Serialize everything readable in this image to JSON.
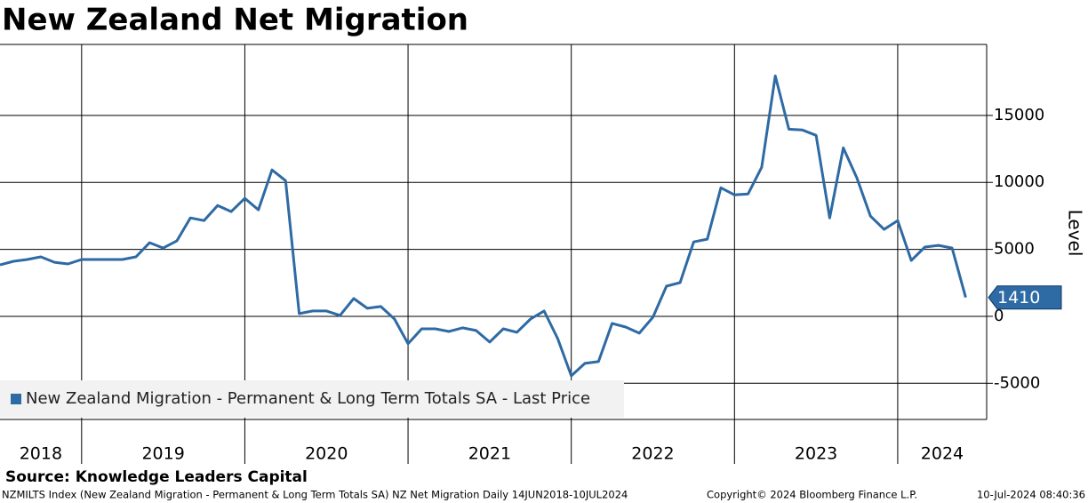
{
  "chart_data": {
    "type": "line",
    "title": "New Zealand Net Migration",
    "y_label": "Level",
    "source": "Source: Knowledge Leaders Capital",
    "footer": {
      "description": "NZMILTS Index (New Zealand Migration - Permanent & Long Term Totals SA) NZ Net Migration  Daily 14JUN2018-10JUL2024",
      "copyright": "Copyright© 2024 Bloomberg Finance L.P.",
      "timestamp": "10-Jul-2024 08:40:36"
    },
    "x": [
      2018.5,
      2018.5833,
      2018.6667,
      2018.75,
      2018.8333,
      2018.9167,
      2019.0,
      2019.0833,
      2019.1667,
      2019.25,
      2019.3333,
      2019.4167,
      2019.5,
      2019.5833,
      2019.6667,
      2019.75,
      2019.8333,
      2019.9167,
      2020.0,
      2020.0833,
      2020.1667,
      2020.25,
      2020.3333,
      2020.4167,
      2020.5,
      2020.5833,
      2020.6667,
      2020.75,
      2020.8333,
      2020.9167,
      2021.0,
      2021.0833,
      2021.1667,
      2021.25,
      2021.3333,
      2021.4167,
      2021.5,
      2021.5833,
      2021.6667,
      2021.75,
      2021.8333,
      2021.9167,
      2022.0,
      2022.0833,
      2022.1667,
      2022.25,
      2022.3333,
      2022.4167,
      2022.5,
      2022.5833,
      2022.6667,
      2022.75,
      2022.8333,
      2022.9167,
      2023.0,
      2023.0833,
      2023.1667,
      2023.25,
      2023.3333,
      2023.4167,
      2023.5,
      2023.5833,
      2023.6667,
      2023.75,
      2023.8333,
      2023.9167,
      2024.0,
      2024.0833,
      2024.1667,
      2024.25,
      2024.3333,
      2024.4167
    ],
    "series": [
      {
        "name": "New Zealand Migration - Permanent & Long Term Totals SA - Last Price",
        "color": "#2e6aa3",
        "values": [
          3840,
          4110,
          4240,
          4440,
          4040,
          3910,
          4240,
          4240,
          4240,
          4240,
          4440,
          5500,
          5100,
          5630,
          7350,
          7150,
          8280,
          7820,
          8810,
          7950,
          10930,
          10130,
          200,
          400,
          400,
          70,
          1330,
          600,
          730,
          -200,
          -2050,
          -930,
          -930,
          -1130,
          -860,
          -1060,
          -1920,
          -930,
          -1190,
          -200,
          400,
          -1660,
          -4440,
          -3510,
          -3380,
          -530,
          -800,
          -1260,
          -70,
          2250,
          2520,
          5560,
          5760,
          9600,
          9070,
          9140,
          11130,
          17950,
          13970,
          13910,
          13510,
          7350,
          12580,
          10330,
          7480,
          6490,
          7150,
          4170,
          5170,
          5300,
          5100,
          1410
        ]
      }
    ],
    "xlim": [
      2018.5,
      2024.545
    ],
    "xticks": [
      2019,
      2020,
      2021,
      2022,
      2023,
      2024
    ],
    "year_labels": [
      "2018",
      "2019",
      "2020",
      "2021",
      "2022",
      "2023",
      "2024"
    ],
    "ylim": [
      -7700,
      20300
    ],
    "yticks": [
      -5000,
      0,
      5000,
      10000,
      15000
    ],
    "grid": true,
    "legend": "lower left"
  }
}
